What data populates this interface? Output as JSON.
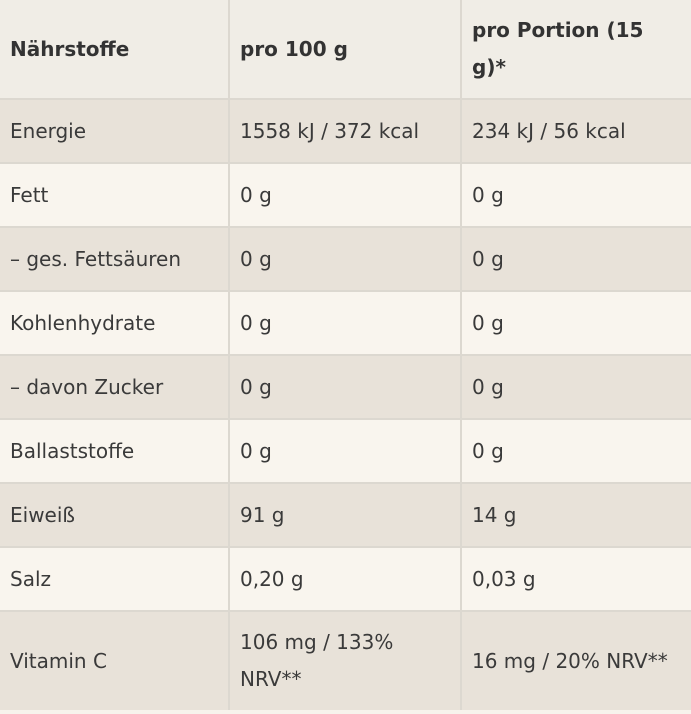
{
  "headers": [
    "Nährstoffe",
    "pro 100 g",
    "pro Portion (15 g)*"
  ],
  "rows": [
    {
      "name": "Energie",
      "per100": "1558 kJ / 372 kcal",
      "perPortion": "234 kJ / 56 kcal"
    },
    {
      "name": "Fett",
      "per100": "0 g",
      "perPortion": "0 g"
    },
    {
      "name": "– ges. Fettsäuren",
      "per100": "0 g",
      "perPortion": "0 g"
    },
    {
      "name": "Kohlenhydrate",
      "per100": "0 g",
      "perPortion": "0 g"
    },
    {
      "name": "– davon Zucker",
      "per100": "0 g",
      "perPortion": "0 g"
    },
    {
      "name": "Ballaststoffe",
      "per100": "0 g",
      "perPortion": "0 g"
    },
    {
      "name": "Eiweiß",
      "per100": "91 g",
      "perPortion": "14 g"
    },
    {
      "name": "Salz",
      "per100": "0,20 g",
      "perPortion": "0,03 g"
    },
    {
      "name": "Vitamin C",
      "per100": "106 mg / 133% NRV**",
      "perPortion": "16 mg / 20% NRV**"
    }
  ]
}
